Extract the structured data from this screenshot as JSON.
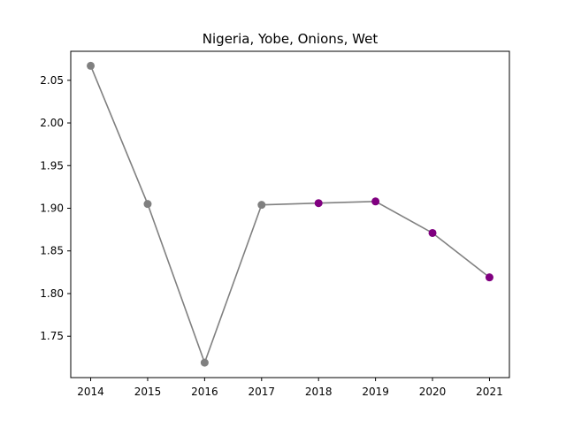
{
  "chart_data": {
    "type": "line",
    "title": "Nigeria, Yobe, Onions, Wet",
    "xlabel": "",
    "ylabel": "",
    "x": [
      2014,
      2015,
      2016,
      2017,
      2018,
      2019,
      2020,
      2021
    ],
    "x_tick_labels": [
      "2014",
      "2015",
      "2016",
      "2017",
      "2018",
      "2019",
      "2020",
      "2021"
    ],
    "y_ticks": [
      1.75,
      1.8,
      1.85,
      1.9,
      1.95,
      2.0,
      2.05
    ],
    "y_tick_labels": [
      "1.75",
      "1.80",
      "1.85",
      "1.90",
      "1.95",
      "2.00",
      "2.05"
    ],
    "xlim": [
      2013.65,
      2021.35
    ],
    "ylim": [
      1.7015,
      2.084
    ],
    "grid": false,
    "series": [
      {
        "values": [
          2.067,
          1.905,
          1.719,
          1.904,
          1.906,
          1.908,
          1.871,
          1.819
        ],
        "line_color": "#808080",
        "point_colors": [
          "#808080",
          "#808080",
          "#808080",
          "#808080",
          "#800080",
          "#800080",
          "#800080",
          "#800080"
        ]
      }
    ]
  }
}
